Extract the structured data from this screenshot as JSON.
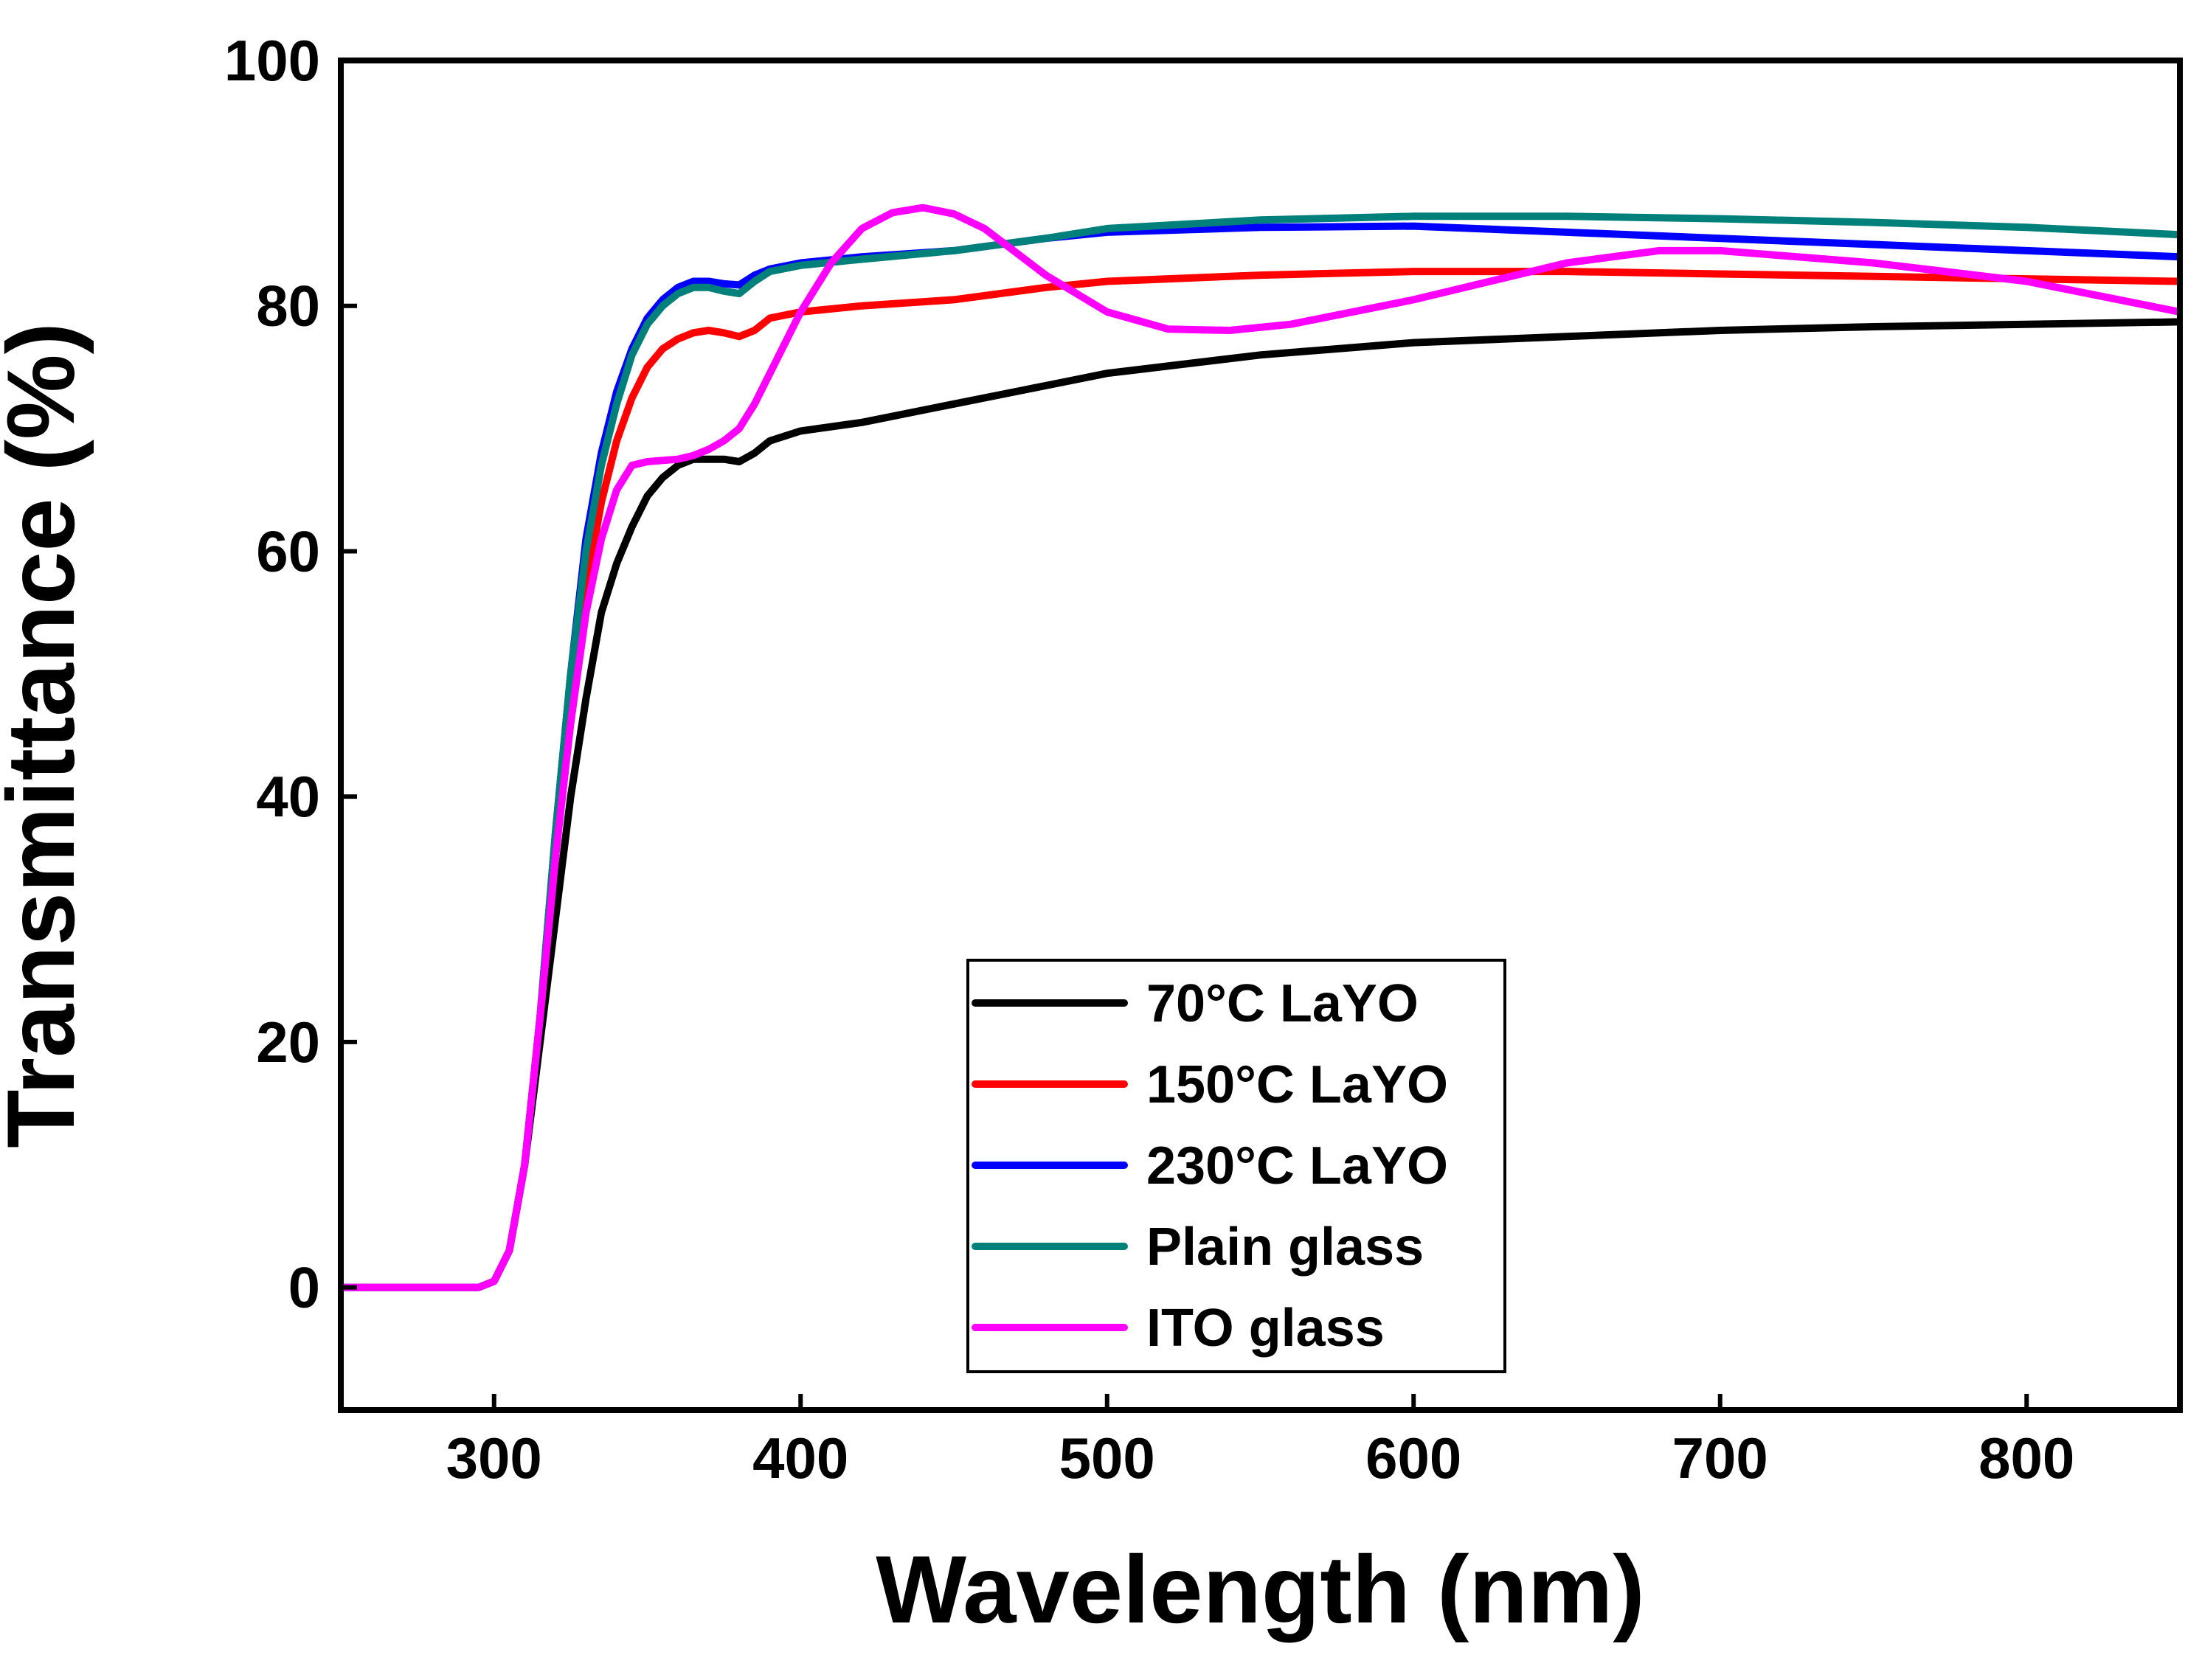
{
  "chart_data": {
    "type": "line",
    "title": "",
    "xlabel": "Wavelength (nm)",
    "ylabel": "Transmittance (%)",
    "xlim": [
      250,
      850
    ],
    "ylim": [
      -10,
      100
    ],
    "xticks": [
      300,
      400,
      500,
      600,
      700,
      800
    ],
    "yticks": [
      0,
      20,
      40,
      60,
      80,
      100
    ],
    "xtick_labels": [
      "300",
      "400",
      "500",
      "600",
      "700",
      "800"
    ],
    "ytick_labels": [
      "0",
      "20",
      "40",
      "60",
      "80",
      "100"
    ],
    "grid": false,
    "legend_position": "bottom-center",
    "series": [
      {
        "name": "70°C LaYO",
        "color": "#000000",
        "x": [
          250,
          295,
          300,
          305,
          310,
          315,
          320,
          325,
          330,
          335,
          340,
          345,
          350,
          355,
          360,
          365,
          370,
          375,
          380,
          385,
          390,
          400,
          420,
          450,
          480,
          500,
          550,
          600,
          650,
          700,
          750,
          800,
          850
        ],
        "y": [
          0,
          0,
          0.5,
          3,
          10,
          20,
          30,
          40,
          48,
          55,
          59,
          62,
          64.5,
          66,
          67,
          67.5,
          67.5,
          67.5,
          67.3,
          68,
          69,
          69.8,
          70.5,
          72,
          73.5,
          74.5,
          76,
          77,
          77.5,
          78,
          78.3,
          78.5,
          78.7
        ]
      },
      {
        "name": "150°C LaYO",
        "color": "#ff0000",
        "x": [
          250,
          295,
          300,
          305,
          310,
          315,
          320,
          325,
          330,
          335,
          340,
          345,
          350,
          355,
          360,
          365,
          370,
          375,
          380,
          385,
          390,
          400,
          420,
          450,
          480,
          500,
          550,
          600,
          650,
          700,
          750,
          800,
          850
        ],
        "y": [
          0,
          0,
          0.5,
          3,
          10,
          22,
          35,
          47,
          57,
          64,
          69,
          72.5,
          75,
          76.5,
          77.3,
          77.8,
          78,
          77.8,
          77.5,
          78,
          79,
          79.5,
          80,
          80.5,
          81.5,
          82,
          82.5,
          82.8,
          82.8,
          82.6,
          82.4,
          82.2,
          82
        ]
      },
      {
        "name": "230°C LaYO",
        "color": "#0000ff",
        "x": [
          250,
          295,
          300,
          305,
          310,
          315,
          320,
          325,
          330,
          335,
          340,
          345,
          350,
          355,
          360,
          365,
          370,
          375,
          380,
          385,
          390,
          400,
          420,
          450,
          480,
          500,
          550,
          600,
          650,
          700,
          750,
          800,
          850
        ],
        "y": [
          0,
          0,
          0.5,
          3,
          10,
          22,
          37,
          50,
          61,
          68,
          73,
          76.5,
          79,
          80.5,
          81.5,
          82,
          82,
          81.8,
          81.7,
          82.5,
          83,
          83.5,
          84,
          84.5,
          85.5,
          86,
          86.4,
          86.5,
          86,
          85.5,
          85,
          84.5,
          84
        ]
      },
      {
        "name": "Plain glass",
        "color": "#00807a",
        "x": [
          250,
          295,
          300,
          305,
          310,
          315,
          320,
          325,
          330,
          335,
          340,
          345,
          350,
          355,
          360,
          365,
          370,
          375,
          380,
          385,
          390,
          400,
          420,
          450,
          480,
          500,
          550,
          600,
          650,
          700,
          750,
          800,
          850
        ],
        "y": [
          0,
          0,
          0.5,
          3,
          10,
          22,
          37,
          50,
          60,
          67,
          72,
          76,
          78.5,
          80,
          81,
          81.5,
          81.5,
          81.2,
          81,
          82,
          82.8,
          83.3,
          83.8,
          84.5,
          85.5,
          86.3,
          87,
          87.3,
          87.3,
          87.1,
          86.8,
          86.4,
          85.8
        ]
      },
      {
        "name": "ITO glass",
        "color": "#ff00ff",
        "x": [
          250,
          295,
          300,
          305,
          310,
          315,
          320,
          325,
          330,
          335,
          340,
          345,
          350,
          355,
          360,
          365,
          370,
          375,
          380,
          385,
          390,
          400,
          410,
          420,
          430,
          440,
          450,
          460,
          480,
          500,
          520,
          540,
          560,
          600,
          650,
          680,
          700,
          750,
          800,
          850
        ],
        "y": [
          0,
          0,
          0.5,
          3,
          10,
          22,
          35,
          46,
          55,
          61,
          65,
          67,
          67.3,
          67.4,
          67.5,
          67.8,
          68.3,
          69,
          70,
          72,
          74.5,
          79.5,
          83.5,
          86.3,
          87.6,
          88,
          87.5,
          86.3,
          82.5,
          79.5,
          78.1,
          78,
          78.5,
          80.5,
          83.5,
          84.5,
          84.5,
          83.5,
          82,
          79.5
        ]
      }
    ]
  }
}
